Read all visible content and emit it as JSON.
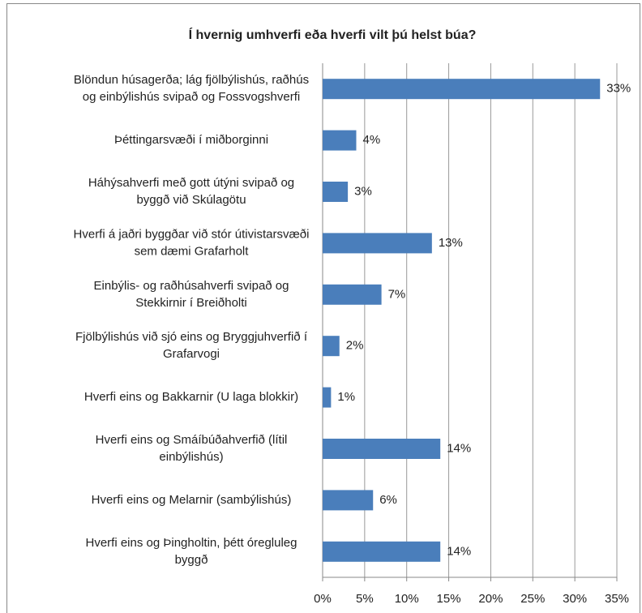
{
  "chart_data": {
    "type": "bar",
    "orientation": "horizontal",
    "title": "Í hvernig umhverfi eða hverfi vilt þú helst búa?",
    "categories": [
      [
        "Blöndun húsagerða; lág fjölbýlishús, raðhús",
        "og einbýlishús svipað og Fossvogshverfi"
      ],
      [
        "Þéttingarsvæði í miðborginni"
      ],
      [
        "Háhýsahverfi með gott útýni svipað og",
        "byggð við Skúlagötu"
      ],
      [
        "Hverfi á jaðri byggðar við stór útivistarsvæði",
        "sem dæmi Grafarholt"
      ],
      [
        "Einbýlis- og raðhúsahverfi svipað og",
        "Stekkirnir í Breiðholti"
      ],
      [
        "Fjölbýlishús við sjó eins og Bryggjuhverfið í",
        "Grafarvogi"
      ],
      [
        "Hverfi eins og Bakkarnir (U laga blokkir)"
      ],
      [
        "Hverfi eins og Smáíbúðahverfið (lítil",
        "einbýlishús)"
      ],
      [
        "Hverfi eins og Melarnir (sambýlishús)"
      ],
      [
        "Hverfi eins og Þingholtin, þétt óregluleg",
        "byggð"
      ]
    ],
    "values": [
      33,
      4,
      3,
      13,
      7,
      2,
      1,
      14,
      6,
      14
    ],
    "value_labels": [
      "33%",
      "4%",
      "3%",
      "13%",
      "7%",
      "2%",
      "1%",
      "14%",
      "6%",
      "14%"
    ],
    "color": "#4a7ebb",
    "xlim": [
      0,
      35
    ],
    "xticks": [
      {
        "value": 0,
        "label": "0%"
      },
      {
        "value": 5,
        "label": "5%"
      },
      {
        "value": 10,
        "label": "10%"
      },
      {
        "value": 15,
        "label": "15%"
      },
      {
        "value": 20,
        "label": "20%"
      },
      {
        "value": 25,
        "label": "25%"
      },
      {
        "value": 30,
        "label": "30%"
      },
      {
        "value": 35,
        "label": "35%"
      }
    ],
    "grid": true
  }
}
